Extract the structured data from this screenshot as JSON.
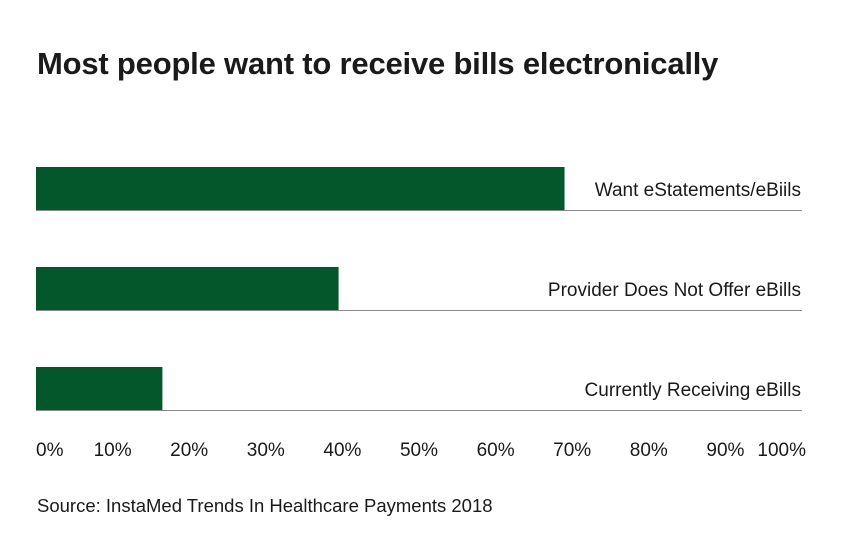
{
  "chart_data": {
    "type": "bar",
    "orientation": "horizontal",
    "title": "Most people want to receive bills electronically",
    "categories": [
      "Want eStatements/eBiils",
      "Provider Does Not Offer eBills",
      "Currently Receiving eBills"
    ],
    "values": [
      69,
      39.5,
      16.5
    ],
    "xlim": [
      0,
      100
    ],
    "xticks": [
      "0%",
      "10%",
      "20%",
      "30%",
      "40%",
      "50%",
      "60%",
      "70%",
      "80%",
      "90%",
      "100%"
    ],
    "xlabel": "",
    "ylabel": "",
    "bar_color": "#03572b",
    "source": "Source: InstaMed Trends In Healthcare Payments 2018"
  }
}
